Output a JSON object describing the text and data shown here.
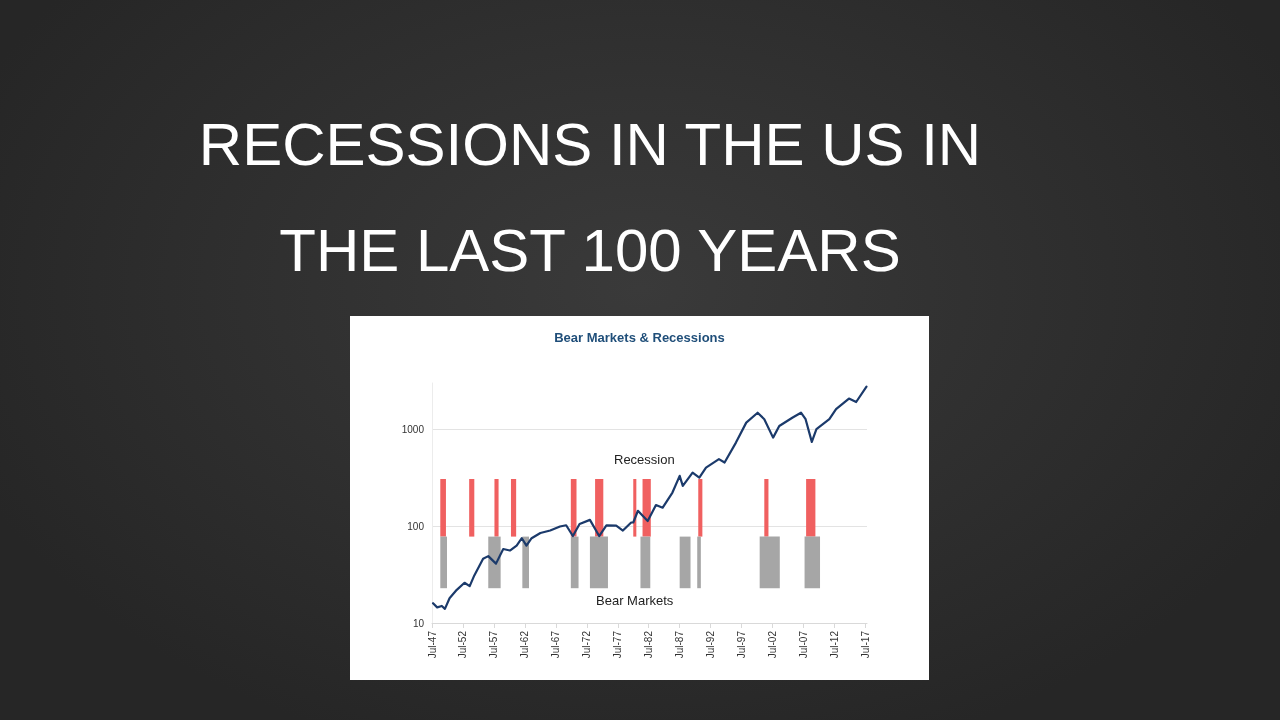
{
  "chart_data": {
    "type": "line",
    "title": "RECESSIONS IN THE US IN THE LAST 100 YEARS",
    "subtitle": "Bear Markets & Recessions",
    "x": [
      "1947-09",
      "1948-05",
      "1949-02",
      "1949-08",
      "1950-05",
      "1951-07",
      "1952-10",
      "1953-08",
      "1954-05",
      "1955-10",
      "1956-08",
      "1957-05",
      "1957-11",
      "1959-01",
      "1960-02",
      "1961-03",
      "1962-01",
      "1962-10",
      "1963-08",
      "1965-01",
      "1966-08",
      "1968-03",
      "1969-03",
      "1970-04",
      "1971-05",
      "1973-01",
      "1974-07",
      "1975-09",
      "1977-04",
      "1978-05",
      "1979-09",
      "1980-01",
      "1980-10",
      "1982-05",
      "1983-09",
      "1984-10",
      "1986-05",
      "1987-07",
      "1988-01",
      "1989-08",
      "1990-09",
      "1991-10",
      "1993-11",
      "1994-10",
      "1996-08",
      "1998-04",
      "2000-02",
      "2001-03",
      "2002-08",
      "2003-08",
      "2005-10",
      "2007-02",
      "2007-11",
      "2008-11",
      "2009-08",
      "2011-09",
      "2012-10",
      "2014-11",
      "2016-01",
      "2017-09"
    ],
    "series": [
      {
        "color": "#1b3a6b",
        "values": [
          16,
          14.5,
          15,
          14,
          18,
          22,
          26,
          24,
          31,
          46,
          49,
          44,
          41,
          58,
          56,
          63,
          75,
          63,
          75,
          85,
          90,
          99,
          102,
          79,
          105,
          116,
          79,
          102,
          101,
          90,
          109,
          109,
          144,
          113,
          165,
          155,
          222,
          330,
          260,
          357,
          317,
          402,
          491,
          453,
          728,
          1170,
          1480,
          1270,
          819,
          1080,
          1320,
          1480,
          1270,
          740,
          1000,
          1270,
          1610,
          2070,
          1910,
          2750
        ]
      }
    ],
    "log": "y",
    "grid": "y",
    "marker": "none",
    "line_style": "solid",
    "xlim": [
      "1947-07",
      "2017-10"
    ],
    "xticks": [
      {
        "value": "1947-07",
        "label": "Jul-47"
      },
      {
        "value": "1952-07",
        "label": "Jul-52"
      },
      {
        "value": "1957-07",
        "label": "Jul-57"
      },
      {
        "value": "1962-07",
        "label": "Jul-62"
      },
      {
        "value": "1967-07",
        "label": "Jul-67"
      },
      {
        "value": "1972-07",
        "label": "Jul-72"
      },
      {
        "value": "1977-07",
        "label": "Jul-77"
      },
      {
        "value": "1982-07",
        "label": "Jul-82"
      },
      {
        "value": "1987-07",
        "label": "Jul-87"
      },
      {
        "value": "1992-07",
        "label": "Jul-92"
      },
      {
        "value": "1997-07",
        "label": "Jul-97"
      },
      {
        "value": "2002-07",
        "label": "Jul-02"
      },
      {
        "value": "2007-07",
        "label": "Jul-07"
      },
      {
        "value": "2012-07",
        "label": "Jul-12"
      },
      {
        "value": "2017-07",
        "label": "Jul-17"
      }
    ],
    "ylim": [
      10,
      3000
    ],
    "yticks": [
      10,
      100,
      1000
    ],
    "bands": [
      {
        "axis": "x",
        "from": "1948-11",
        "to": "1949-10",
        "color": "#f06060"
      },
      {
        "axis": "x",
        "from": "1953-07",
        "to": "1954-05",
        "color": "#f06060"
      },
      {
        "axis": "x",
        "from": "1957-08",
        "to": "1958-04",
        "color": "#f06060"
      },
      {
        "axis": "x",
        "from": "1960-04",
        "to": "1961-02",
        "color": "#f06060"
      },
      {
        "axis": "x",
        "from": "1969-12",
        "to": "1970-11",
        "color": "#f06060"
      },
      {
        "axis": "x",
        "from": "1973-11",
        "to": "1975-03",
        "color": "#f06060"
      },
      {
        "axis": "x",
        "from": "1980-01",
        "to": "1980-07",
        "color": "#f06060"
      },
      {
        "axis": "x",
        "from": "1981-07",
        "to": "1982-11",
        "color": "#f06060"
      },
      {
        "axis": "x",
        "from": "1990-07",
        "to": "1991-03",
        "color": "#f06060"
      },
      {
        "axis": "x",
        "from": "2001-03",
        "to": "2001-11",
        "color": "#f06060"
      },
      {
        "axis": "x",
        "from": "2007-12",
        "to": "2009-06",
        "color": "#f06060"
      },
      {
        "axis": "x",
        "from": "1948-11",
        "to": "1949-12",
        "color": "#a6a6a6"
      },
      {
        "axis": "x",
        "from": "1956-08",
        "to": "1958-08",
        "color": "#a6a6a6"
      },
      {
        "axis": "x",
        "from": "1962-02",
        "to": "1963-03",
        "color": "#a6a6a6"
      },
      {
        "axis": "x",
        "from": "1969-12",
        "to": "1971-03",
        "color": "#a6a6a6"
      },
      {
        "axis": "x",
        "from": "1973-01",
        "to": "1975-12",
        "color": "#a6a6a6"
      },
      {
        "axis": "x",
        "from": "1981-03",
        "to": "1982-10",
        "color": "#a6a6a6"
      },
      {
        "axis": "x",
        "from": "1987-07",
        "to": "1989-04",
        "color": "#a6a6a6"
      },
      {
        "axis": "x",
        "from": "1990-05",
        "to": "1990-12",
        "color": "#a6a6a6"
      },
      {
        "axis": "x",
        "from": "2000-06",
        "to": "2003-09",
        "color": "#a6a6a6"
      },
      {
        "axis": "x",
        "from": "2007-09",
        "to": "2010-03",
        "color": "#a6a6a6"
      }
    ],
    "annotations": [
      "Recession",
      "Bear Markets"
    ]
  }
}
